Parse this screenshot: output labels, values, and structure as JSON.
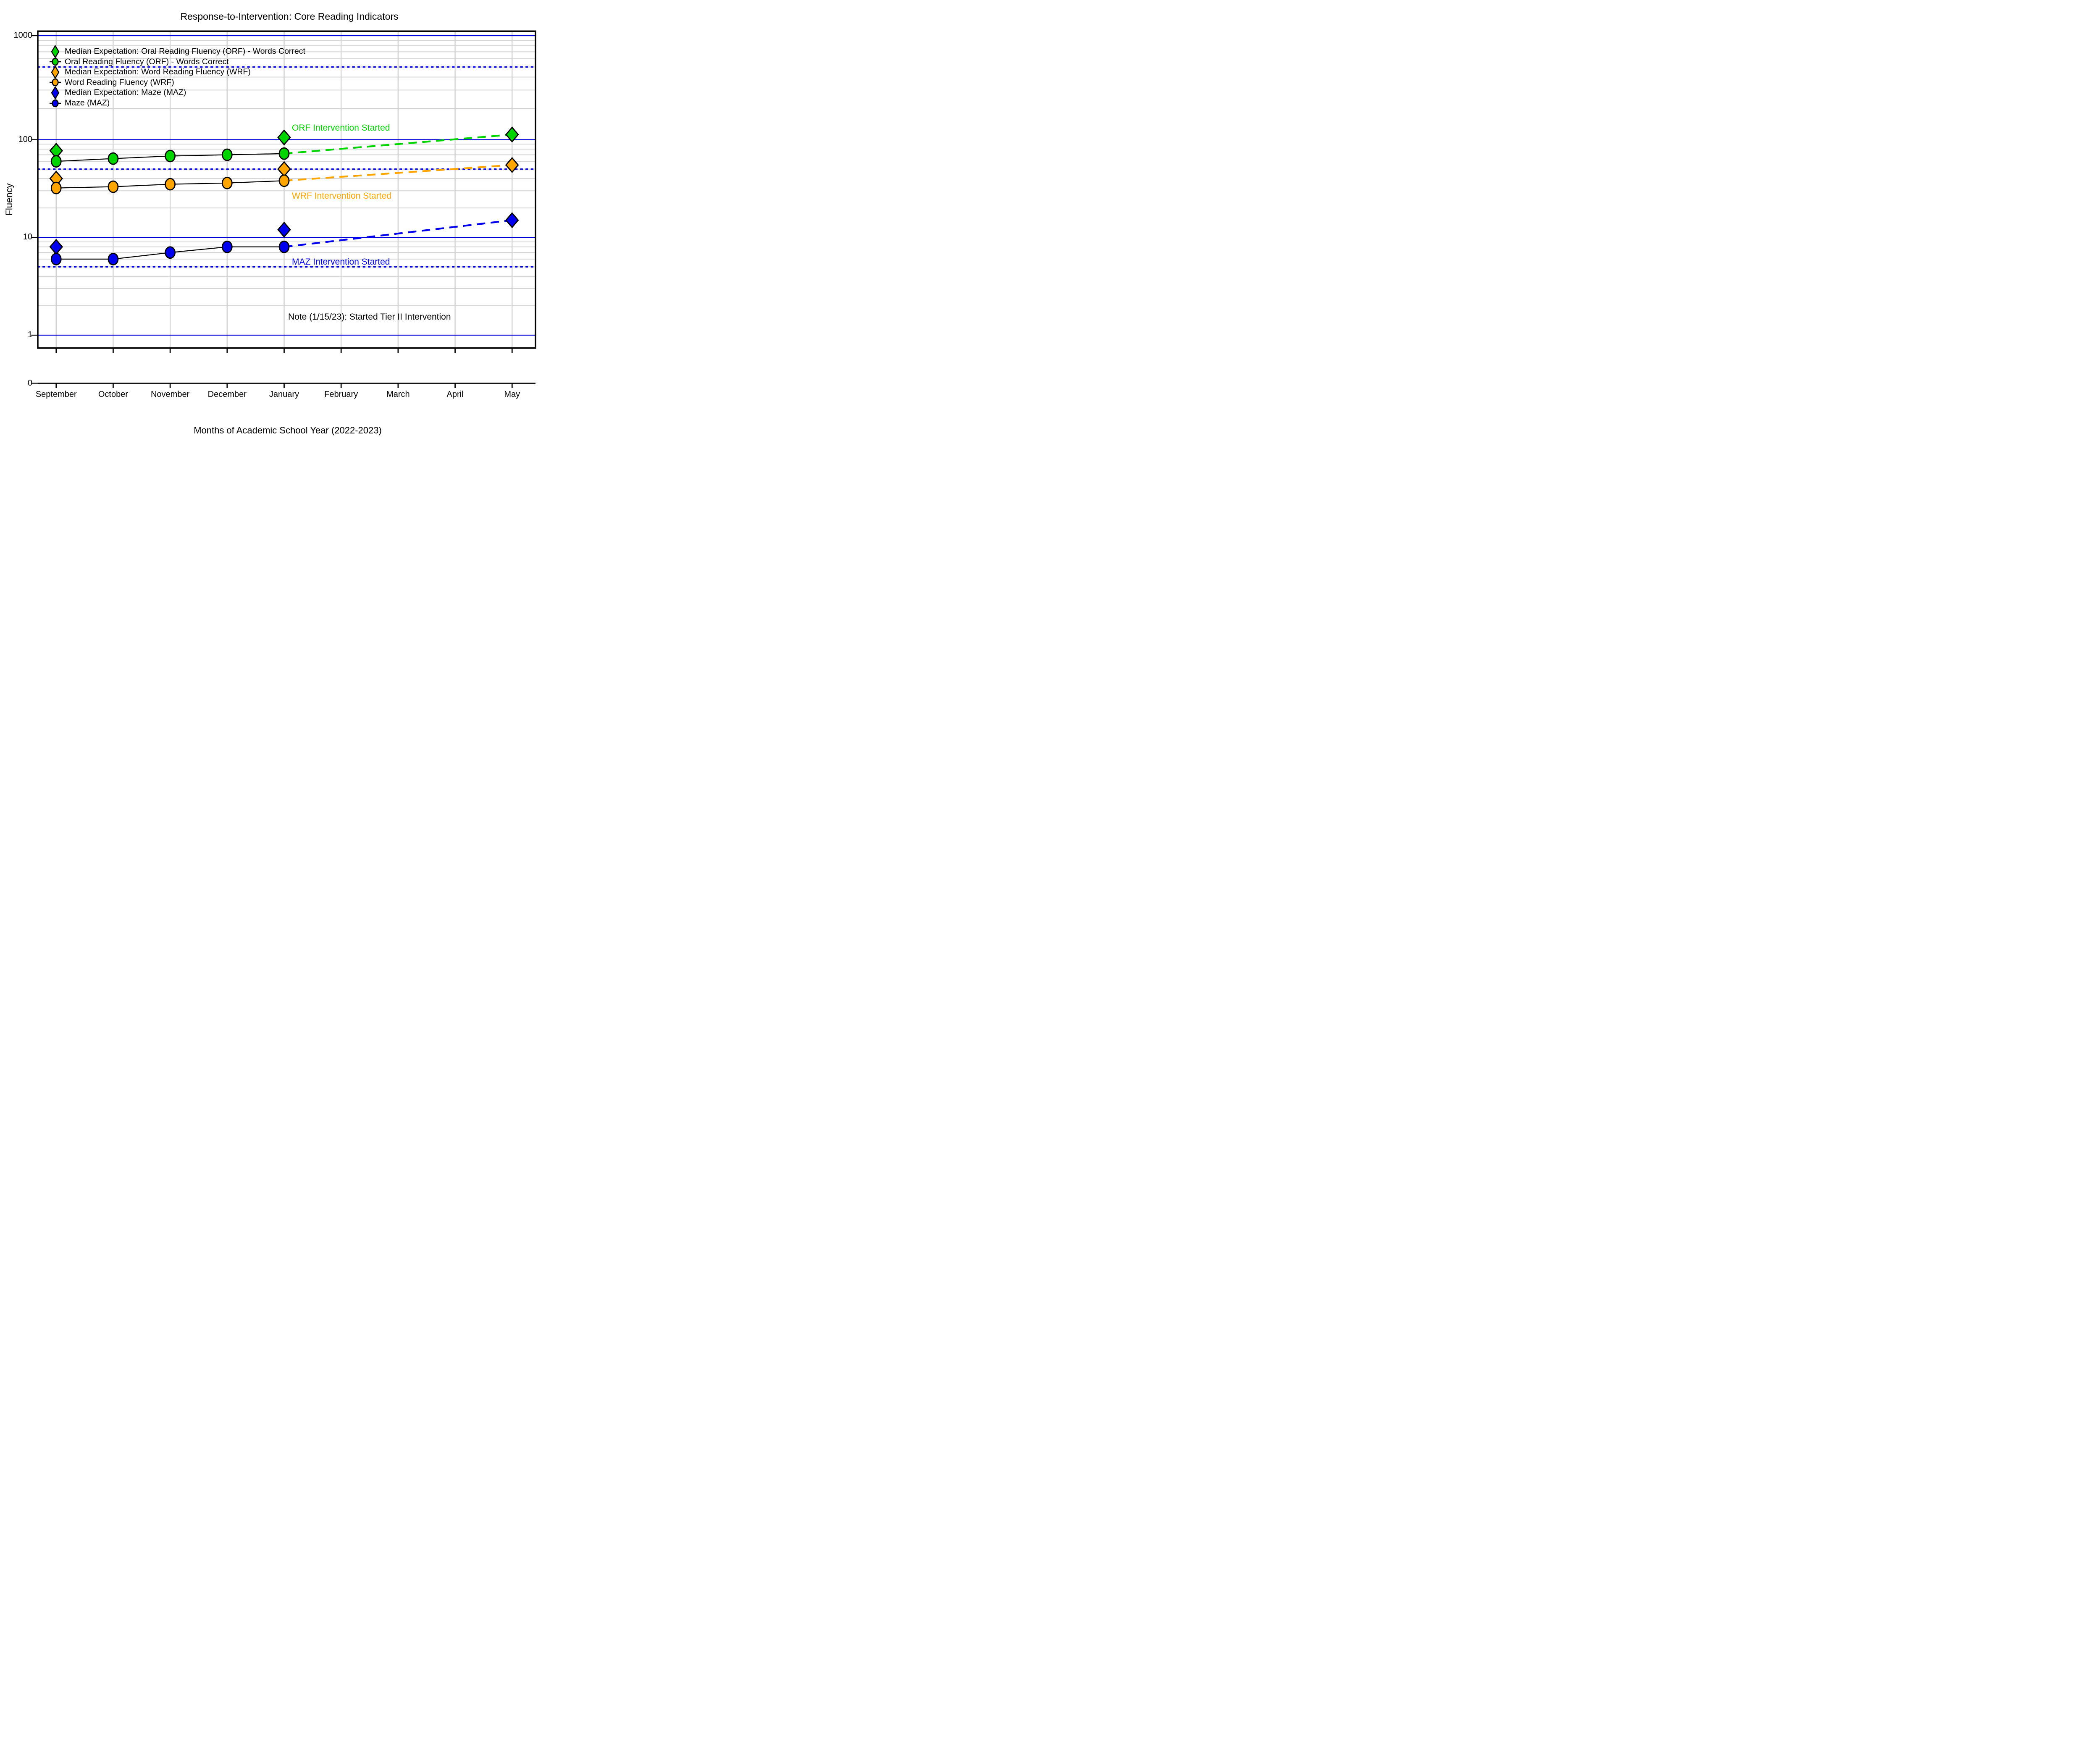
{
  "title": "Response-to-Intervention: Core Reading Indicators",
  "y_axis": {
    "label": "Fluency",
    "tick_labels": [
      "1000",
      "100",
      "10",
      "1",
      "0"
    ]
  },
  "x_axis": {
    "label": "Months of Academic School Year (2022-2023)",
    "tick_labels": [
      "September",
      "October",
      "November",
      "December",
      "January",
      "February",
      "March",
      "April",
      "May"
    ]
  },
  "colors": {
    "orf_green": "#00d500",
    "wrf_orange": "#ffa500",
    "maz_blue": "#0000ee",
    "grid_blue": "#0000dd",
    "grid_gray": "#d4d4d4",
    "series_line_black": "#000000"
  },
  "legend": [
    {
      "label": "Median Expectation: Oral Reading Fluency (ORF) - Words Correct",
      "marker": "diamond",
      "color": "#00d500"
    },
    {
      "label": "Oral Reading Fluency (ORF) - Words Correct",
      "marker": "circle",
      "color": "#00d500"
    },
    {
      "label": "Median Expectation: Word Reading Fluency (WRF)",
      "marker": "diamond",
      "color": "#ffa500"
    },
    {
      "label": "Word Reading Fluency (WRF)",
      "marker": "circle",
      "color": "#ffa500"
    },
    {
      "label": "Median Expectation: Maze (MAZ)",
      "marker": "diamond",
      "color": "#0000ee"
    },
    {
      "label": "Maze (MAZ)",
      "marker": "circle",
      "color": "#0000ee"
    }
  ],
  "annotations": {
    "orf": {
      "text": "ORF Intervention Started",
      "color": "#00d500"
    },
    "wrf": {
      "text": "WRF Intervention Started",
      "color": "#ffa500"
    },
    "maz": {
      "text": "MAZ Intervention Started",
      "color": "#0000ee"
    },
    "note": {
      "text": "Note (1/15/23): Started Tier II Intervention",
      "color": "#000000"
    }
  },
  "chart_data": {
    "type": "line",
    "title": "Response-to-Intervention: Core Reading Indicators",
    "xlabel": "Months of Academic School Year (2022-2023)",
    "ylabel": "Fluency",
    "x_categories": [
      "September",
      "October",
      "November",
      "December",
      "January",
      "February",
      "March",
      "April",
      "May"
    ],
    "y_scale": "log",
    "y_major_lines": [
      1000,
      100,
      10,
      1
    ],
    "y_dotted_reference_lines": [
      500,
      50,
      5
    ],
    "y_axis_break_label": 0,
    "grid": true,
    "legend_position": "top-left inside",
    "series": [
      {
        "name": "Median Expectation: Oral Reading Fluency (ORF) - Words Correct",
        "marker": "diamond",
        "color": "#00d500",
        "line": "none",
        "points": [
          {
            "month": "September",
            "value": 77
          },
          {
            "month": "January",
            "value": 105
          },
          {
            "month": "May",
            "value": 112
          }
        ]
      },
      {
        "name": "Oral Reading Fluency (ORF) - Words Correct",
        "marker": "circle",
        "color": "#00d500",
        "line": "solid-black",
        "points": [
          {
            "month": "September",
            "value": 60
          },
          {
            "month": "October",
            "value": 64
          },
          {
            "month": "November",
            "value": 68
          },
          {
            "month": "December",
            "value": 70
          },
          {
            "month": "January",
            "value": 72
          }
        ]
      },
      {
        "name": "Median Expectation: Word Reading Fluency (WRF)",
        "marker": "diamond",
        "color": "#ffa500",
        "line": "none",
        "points": [
          {
            "month": "September",
            "value": 40
          },
          {
            "month": "January",
            "value": 50
          },
          {
            "month": "May",
            "value": 55
          }
        ]
      },
      {
        "name": "Word Reading Fluency (WRF)",
        "marker": "circle",
        "color": "#ffa500",
        "line": "solid-black",
        "points": [
          {
            "month": "September",
            "value": 32
          },
          {
            "month": "October",
            "value": 33
          },
          {
            "month": "November",
            "value": 35
          },
          {
            "month": "December",
            "value": 36
          },
          {
            "month": "January",
            "value": 38
          }
        ]
      },
      {
        "name": "Median Expectation: Maze (MAZ)",
        "marker": "diamond",
        "color": "#0000ee",
        "line": "none",
        "points": [
          {
            "month": "September",
            "value": 8
          },
          {
            "month": "January",
            "value": 12
          },
          {
            "month": "May",
            "value": 15
          }
        ]
      },
      {
        "name": "Maze (MAZ)",
        "marker": "circle",
        "color": "#0000ee",
        "line": "solid-black",
        "points": [
          {
            "month": "September",
            "value": 6
          },
          {
            "month": "October",
            "value": 6
          },
          {
            "month": "November",
            "value": 7
          },
          {
            "month": "December",
            "value": 8
          },
          {
            "month": "January",
            "value": 8
          }
        ]
      }
    ],
    "aimlines": [
      {
        "name": "ORF aimline",
        "style": "dashed",
        "color": "#00d500",
        "from": {
          "month": "January",
          "value": 72
        },
        "to": {
          "month": "May",
          "value": 112
        }
      },
      {
        "name": "WRF aimline",
        "style": "dashed",
        "color": "#ffa500",
        "from": {
          "month": "January",
          "value": 38
        },
        "to": {
          "month": "May",
          "value": 55
        }
      },
      {
        "name": "MAZ aimline",
        "style": "dashed",
        "color": "#0000ee",
        "from": {
          "month": "January",
          "value": 8
        },
        "to": {
          "month": "May",
          "value": 15
        }
      }
    ]
  }
}
